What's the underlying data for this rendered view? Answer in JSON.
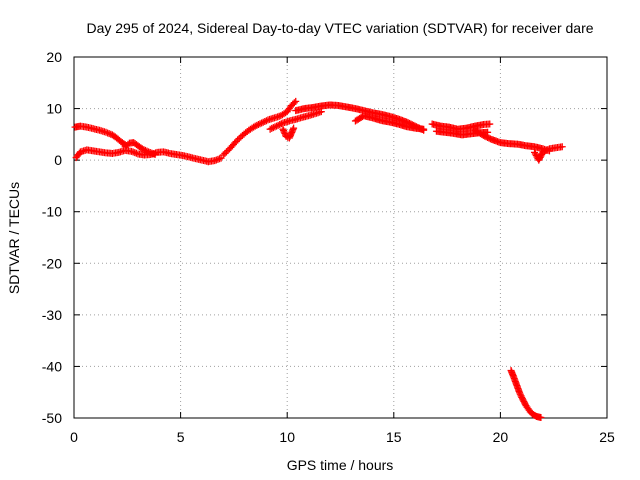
{
  "chart_data": {
    "type": "scatter",
    "title": "Day 295 of 2024, Sidereal Day-to-day VTEC variation (SDTVAR) for receiver dare",
    "xlabel": "GPS time / hours",
    "ylabel": "SDTVAR / TECUs",
    "xlim": [
      0,
      25
    ],
    "ylim": [
      -50,
      20
    ],
    "xticks": [
      0,
      5,
      10,
      15,
      20,
      25
    ],
    "yticks": [
      -50,
      -40,
      -30,
      -20,
      -10,
      0,
      10,
      20
    ],
    "grid": true,
    "marker": "plus",
    "color": "#ff0000",
    "series": [
      {
        "name": "arc-early-decline",
        "x": [
          0.05,
          0.3,
          0.6,
          0.9,
          1.2,
          1.5,
          1.8,
          2.0,
          2.2,
          2.4
        ],
        "y": [
          6.4,
          6.6,
          6.4,
          6.1,
          5.8,
          5.4,
          4.9,
          4.3,
          3.6,
          3.0
        ]
      },
      {
        "name": "arc-near-zero",
        "x": [
          0.1,
          0.3,
          0.6,
          0.9,
          1.2,
          1.5,
          1.8,
          2.1,
          2.4,
          2.7,
          3.0,
          3.3,
          3.6,
          3.9,
          4.2,
          4.5,
          4.8,
          5.1,
          5.4,
          5.7,
          6.0,
          6.3,
          6.6,
          6.9
        ],
        "y": [
          0.5,
          1.6,
          2.0,
          1.8,
          1.6,
          1.4,
          1.3,
          1.5,
          1.9,
          1.7,
          1.2,
          1.0,
          1.1,
          1.5,
          1.6,
          1.3,
          1.1,
          0.9,
          0.6,
          0.3,
          0.0,
          -0.3,
          -0.1,
          0.4
        ]
      },
      {
        "name": "arc-bump-2.6h",
        "x": [
          2.4,
          2.6,
          2.8,
          3.0,
          3.2,
          3.5,
          3.8
        ],
        "y": [
          2.6,
          3.3,
          3.4,
          2.8,
          2.2,
          1.6,
          1.1
        ]
      },
      {
        "name": "arc-rise",
        "x": [
          7.0,
          7.3,
          7.6,
          7.9,
          8.2,
          8.5,
          8.8,
          9.1,
          9.4,
          9.7,
          10.0,
          10.2,
          10.4
        ],
        "y": [
          1.0,
          2.2,
          3.6,
          4.8,
          5.8,
          6.6,
          7.2,
          7.8,
          8.2,
          8.6,
          9.4,
          10.6,
          11.4
        ]
      },
      {
        "name": "arc-lower-noon",
        "x": [
          9.2,
          9.5,
          9.8,
          10.1,
          10.4,
          10.7,
          11.0,
          11.3,
          11.6
        ],
        "y": [
          6.0,
          6.6,
          7.2,
          7.6,
          7.9,
          8.3,
          8.6,
          9.0,
          9.4
        ]
      },
      {
        "name": "arc-dip-10h",
        "x": [
          9.8,
          9.95,
          10.1,
          10.3
        ],
        "y": [
          6.0,
          4.6,
          4.3,
          6.2
        ]
      },
      {
        "name": "arc-plateau",
        "x": [
          10.4,
          10.8,
          11.2,
          11.6,
          12.0,
          12.4,
          12.8,
          13.2,
          13.6,
          14.0,
          14.4,
          14.8,
          15.2,
          15.6,
          16.0,
          16.4
        ],
        "y": [
          9.6,
          10.0,
          10.2,
          10.5,
          10.7,
          10.6,
          10.3,
          10.0,
          9.6,
          9.2,
          8.9,
          8.5,
          8.0,
          7.4,
          6.6,
          5.8
        ]
      },
      {
        "name": "arc-secondary",
        "x": [
          13.2,
          13.6,
          14.0,
          14.4,
          14.8,
          15.2,
          15.6,
          16.0,
          16.4
        ],
        "y": [
          7.6,
          8.6,
          8.2,
          7.7,
          7.4,
          7.0,
          6.5,
          6.2,
          6.0
        ]
      },
      {
        "name": "arc-evening",
        "x": [
          16.8,
          17.2,
          17.6,
          18.0,
          18.4,
          18.8,
          19.2,
          19.5
        ],
        "y": [
          7.0,
          6.6,
          6.4,
          6.0,
          6.2,
          6.6,
          6.9,
          7.0
        ]
      },
      {
        "name": "arc-evening-low",
        "x": [
          17.0,
          17.4,
          17.8,
          18.2,
          18.6,
          19.0,
          19.4
        ],
        "y": [
          5.6,
          5.4,
          5.2,
          4.9,
          5.1,
          5.3,
          5.4
        ]
      },
      {
        "name": "arc-late-decline",
        "x": [
          18.8,
          19.2,
          19.6,
          20.0,
          20.4,
          20.8,
          21.2,
          21.6,
          22.0,
          22.3
        ],
        "y": [
          5.8,
          4.8,
          4.0,
          3.4,
          3.2,
          3.1,
          2.8,
          2.6,
          2.2,
          1.8
        ]
      },
      {
        "name": "arc-end",
        "x": [
          21.6,
          21.8,
          22.0,
          22.3,
          22.6,
          22.9
        ],
        "y": [
          1.5,
          0.0,
          1.6,
          2.2,
          2.4,
          2.6
        ]
      },
      {
        "name": "arc-steep-drop",
        "x": [
          20.5,
          20.6,
          20.7,
          20.8,
          20.9,
          21.0,
          21.1,
          21.2,
          21.3,
          21.4,
          21.5,
          21.6,
          21.7,
          21.8,
          21.9
        ],
        "y": [
          -40.8,
          -41.8,
          -42.9,
          -44.0,
          -45.1,
          -46.0,
          -46.8,
          -47.6,
          -48.2,
          -48.8,
          -49.2,
          -49.5,
          -49.7,
          -49.8,
          -49.9
        ]
      }
    ]
  }
}
